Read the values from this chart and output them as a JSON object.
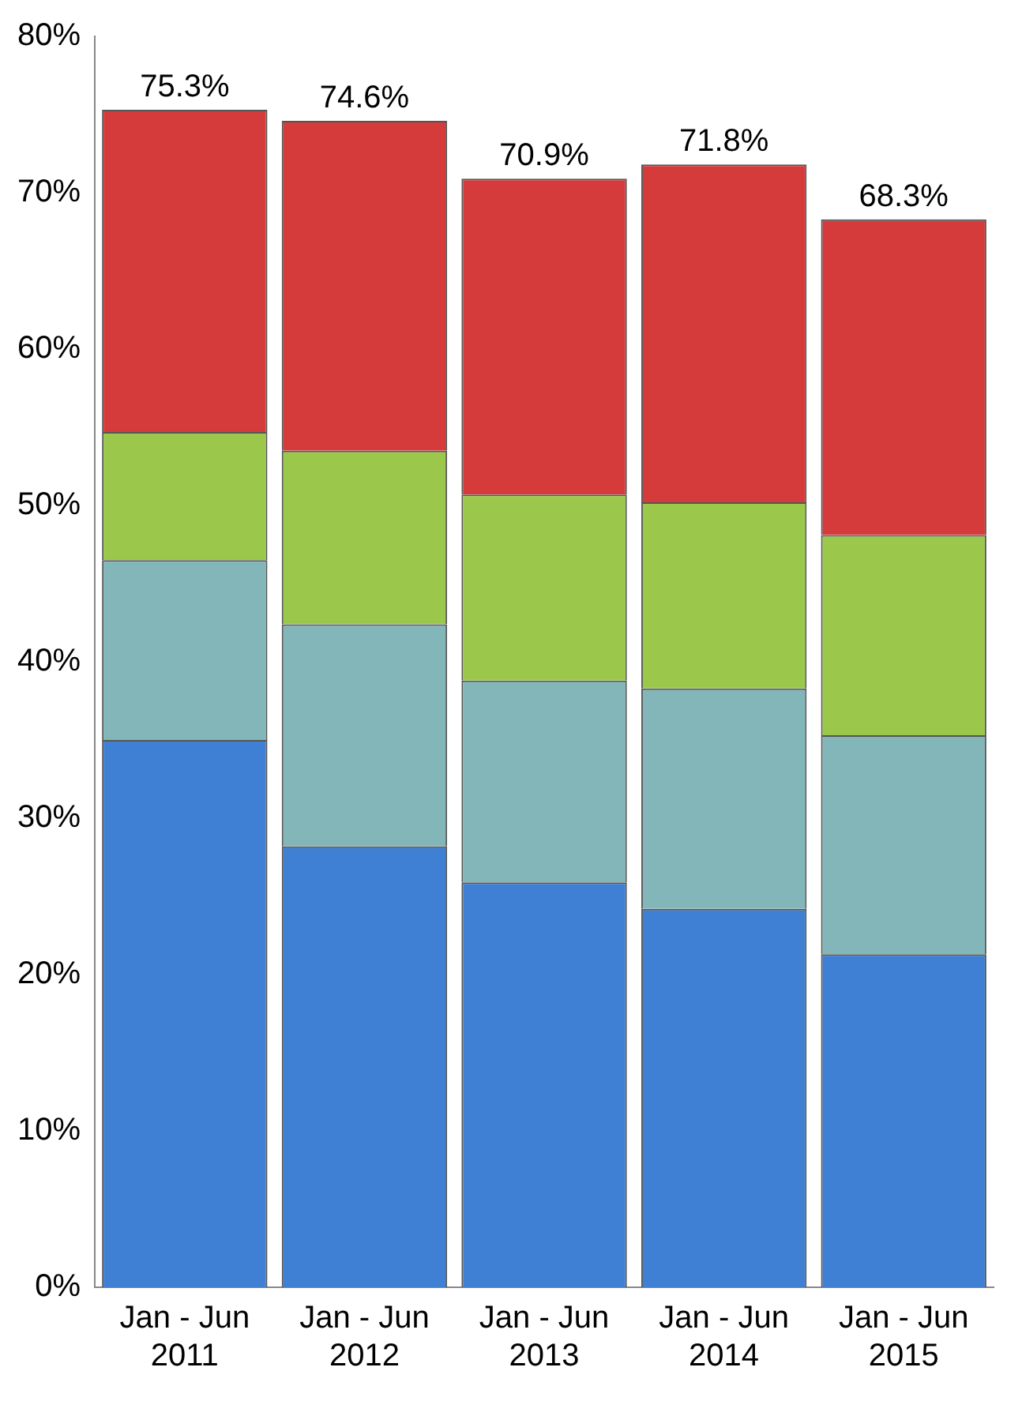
{
  "chart_data": {
    "type": "bar",
    "stacked": true,
    "categories": [
      "Jan - Jun 2011",
      "Jan - Jun 2012",
      "Jan - Jun 2013",
      "Jan - Jun 2014",
      "Jan - Jun 2015"
    ],
    "series": [
      {
        "color": "#3f7fd4",
        "values": [
          35.0,
          28.2,
          25.9,
          24.2,
          21.3
        ]
      },
      {
        "color": "#82b6b8",
        "values": [
          11.5,
          14.2,
          12.9,
          14.1,
          14.0
        ]
      },
      {
        "color": "#9bc84a",
        "values": [
          8.2,
          11.1,
          11.9,
          11.9,
          12.8
        ]
      },
      {
        "color": "#d63b3b",
        "values": [
          20.6,
          21.1,
          20.2,
          21.6,
          20.2
        ]
      }
    ],
    "totals": [
      "75.3%",
      "74.6%",
      "70.9%",
      "71.8%",
      "68.3%"
    ],
    "ylim": [
      0,
      80
    ],
    "yticks": [
      {
        "value": 0,
        "label": "0%"
      },
      {
        "value": 10,
        "label": "10%"
      },
      {
        "value": 20,
        "label": "20%"
      },
      {
        "value": 30,
        "label": "30%"
      },
      {
        "value": 40,
        "label": "40%"
      },
      {
        "value": 50,
        "label": "50%"
      },
      {
        "value": 60,
        "label": "60%"
      },
      {
        "value": 70,
        "label": "70%"
      },
      {
        "value": 80,
        "label": "80%"
      }
    ],
    "grid": false,
    "legend": false
  }
}
